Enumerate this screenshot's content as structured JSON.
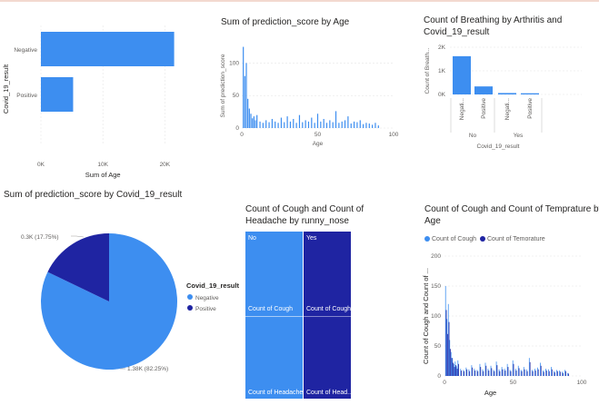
{
  "colors": {
    "blue": "#3d8ef0",
    "navy": "#1f24a2",
    "grid": "#e6e6e6",
    "axis": "#605e5c"
  },
  "v1": {
    "ylabel": "Covid_19_result",
    "xlabel": "Sum of Age",
    "ticks": [
      "0K",
      "10K",
      "20K"
    ],
    "chart_data": {
      "type": "bar",
      "orientation": "horizontal",
      "categories": [
        "Negative",
        "Positive"
      ],
      "values": [
        21500,
        5200
      ],
      "xlabel": "Sum of Age",
      "ylabel": "Covid_19_result",
      "xlim": [
        0,
        22000
      ]
    }
  },
  "v2": {
    "title": "Sum of prediction_score by Age",
    "ylabel": "Sum of prediction_score",
    "xlabel": "Age",
    "yticks": [
      "100",
      "50",
      "0"
    ],
    "xticks": [
      "0",
      "50",
      "100"
    ],
    "chart_data": {
      "type": "bar",
      "title": "Sum of prediction_score by Age",
      "xlabel": "Age",
      "ylabel": "Sum of prediction_score",
      "x": [
        1,
        2,
        3,
        4,
        5,
        6,
        7,
        8,
        9,
        10,
        12,
        14,
        16,
        18,
        20,
        22,
        24,
        26,
        28,
        30,
        32,
        34,
        36,
        38,
        40,
        42,
        44,
        46,
        48,
        50,
        52,
        54,
        56,
        58,
        60,
        62,
        64,
        66,
        68,
        70,
        72,
        74,
        76,
        78,
        80,
        82,
        84,
        86,
        88,
        90
      ],
      "values": [
        125,
        80,
        100,
        45,
        30,
        22,
        15,
        18,
        12,
        20,
        10,
        8,
        12,
        9,
        14,
        10,
        8,
        16,
        9,
        18,
        10,
        14,
        8,
        20,
        9,
        12,
        10,
        16,
        8,
        22,
        10,
        14,
        8,
        12,
        9,
        26,
        8,
        10,
        12,
        18,
        7,
        10,
        9,
        12,
        6,
        8,
        7,
        5,
        8,
        4
      ],
      "xlim": [
        0,
        100
      ],
      "ylim": [
        0,
        130
      ]
    }
  },
  "v3": {
    "title": "Count of Breathing by Arthritis and",
    "title2": "Covid_19_result",
    "ylabel": "Count of Breath...",
    "xlabel": "Covid_19_result",
    "yticks": [
      "2K",
      "1K",
      "0K"
    ],
    "cats": [
      "Negati...",
      "Positive",
      "Negati...",
      "Positive"
    ],
    "groups": [
      "No",
      "Yes"
    ],
    "chart_data": {
      "type": "bar",
      "title": "Count of Breathing by Arthritis and Covid_19_result",
      "xlabel": "Covid_19_result",
      "ylabel": "Count of Breath...",
      "groups": [
        "No",
        "Yes"
      ],
      "categories": [
        "Negati...",
        "Positive",
        "Negati...",
        "Positive"
      ],
      "values": [
        1620,
        340,
        60,
        50
      ],
      "ylim": [
        0,
        2000
      ]
    }
  },
  "v4": {
    "title": "Sum of prediction_score by Covid_19_result",
    "legend_title": "Covid_19_result",
    "label_pos": "1.38K (82.25%)",
    "label_neg": "0.3K (17.75%)",
    "chart_data": {
      "type": "pie",
      "title": "Sum of prediction_score by Covid_19_result",
      "categories": [
        "Negative",
        "Positive"
      ],
      "values": [
        1380,
        300
      ],
      "percentages": [
        82.25,
        17.75
      ]
    }
  },
  "v5": {
    "title": "Count of Cough and Count of",
    "title2": "Headache by runny_nose",
    "col_no": "No",
    "col_yes": "Yes",
    "cell_no_cough": "Count of Cough",
    "cell_yes_cough": "Count of Cough",
    "cell_no_head": "Count of Headache",
    "cell_yes_head": "Count of Head...",
    "chart_data": {
      "type": "table",
      "title": "Count of Cough and Count of Headache by runny_nose",
      "columns": [
        "No",
        "Yes"
      ],
      "rows": [
        "Count of Cough",
        "Count of Headache"
      ],
      "shares": [
        0.46,
        0.54
      ]
    }
  },
  "v6": {
    "title": "Count of Cough and Count of Temprature by",
    "title2": "Age",
    "legend": [
      "Count of Cough",
      "Count of Temorature"
    ],
    "ylabel": "Count of Cough and Count of ...",
    "xlabel": "Age",
    "yticks": [
      "200",
      "150",
      "100",
      "50",
      "0"
    ],
    "xticks": [
      "0",
      "50",
      "100"
    ],
    "chart_data": {
      "type": "bar",
      "title": "Count of Cough and Count of Temprature by Age",
      "xlabel": "Age",
      "ylabel": "Count of Cough and Count of ...",
      "x": [
        1,
        2,
        3,
        4,
        5,
        6,
        7,
        8,
        9,
        10,
        12,
        14,
        16,
        18,
        20,
        22,
        24,
        26,
        28,
        30,
        32,
        34,
        36,
        38,
        40,
        42,
        44,
        46,
        48,
        50,
        52,
        54,
        56,
        58,
        60,
        62,
        64,
        66,
        68,
        70,
        72,
        74,
        76,
        78,
        80,
        82,
        84,
        86,
        88,
        90
      ],
      "series": [
        {
          "name": "Count of Cough",
          "values": [
            150,
            95,
            120,
            60,
            40,
            30,
            20,
            24,
            16,
            26,
            12,
            10,
            14,
            11,
            18,
            12,
            10,
            20,
            11,
            22,
            12,
            17,
            10,
            24,
            11,
            15,
            12,
            20,
            10,
            26,
            12,
            17,
            10,
            15,
            11,
            30,
            10,
            12,
            14,
            22,
            9,
            12,
            11,
            15,
            8,
            10,
            9,
            7,
            10,
            5
          ]
        },
        {
          "name": "Count of Temorature",
          "values": [
            110,
            70,
            90,
            45,
            30,
            22,
            15,
            18,
            12,
            20,
            9,
            8,
            11,
            8,
            14,
            9,
            8,
            15,
            8,
            17,
            9,
            13,
            8,
            18,
            8,
            11,
            9,
            15,
            8,
            20,
            9,
            13,
            8,
            11,
            8,
            23,
            8,
            9,
            11,
            17,
            7,
            9,
            8,
            11,
            6,
            8,
            7,
            5,
            8,
            4
          ]
        }
      ],
      "xlim": [
        0,
        100
      ],
      "ylim": [
        0,
        200
      ]
    }
  }
}
